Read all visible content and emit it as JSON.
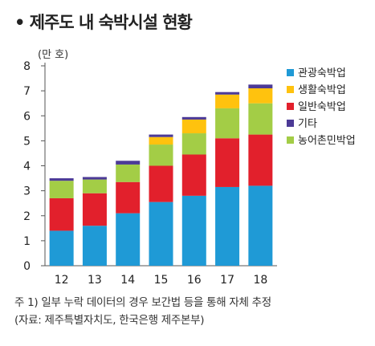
{
  "title": "• 제주도 내 숙박시설 현황",
  "chart_data": {
    "type": "bar",
    "stacked": true,
    "unit_label": "(만 호)",
    "categories": [
      "12",
      "13",
      "14",
      "15",
      "16",
      "17",
      "18"
    ],
    "ylim": [
      0,
      8
    ],
    "yticks": [
      "0",
      "1",
      "2",
      "3",
      "4",
      "5",
      "6",
      "7",
      "8"
    ],
    "grid": false,
    "legend_position": "right",
    "series": [
      {
        "name": "관광숙박업",
        "color": "#1f9ad6",
        "values": [
          1.4,
          1.6,
          2.1,
          2.55,
          2.8,
          3.15,
          3.2
        ]
      },
      {
        "name": "생활숙박업",
        "color": "#ffc20e",
        "values": [
          0,
          0,
          0,
          0.3,
          0.55,
          0.55,
          0.6
        ]
      },
      {
        "name": "일반숙박업",
        "color": "#e2202c",
        "values": [
          1.3,
          1.3,
          1.25,
          1.45,
          1.65,
          1.95,
          2.05
        ]
      },
      {
        "name": "기타",
        "color": "#4c3a96",
        "values": [
          0.1,
          0.1,
          0.15,
          0.1,
          0.1,
          0.1,
          0.15
        ]
      },
      {
        "name": "농어촌민박업",
        "color": "#a3cd46",
        "values": [
          0.7,
          0.55,
          0.7,
          0.85,
          0.85,
          1.2,
          1.25
        ]
      }
    ],
    "stack_order": [
      "관광숙박업",
      "일반숙박업",
      "농어촌민박업",
      "생활숙박업",
      "기타"
    ]
  },
  "notes": {
    "line1": "주 1) 일부 누락 데이터의 경우 보간법 등을 통해 자체 추정",
    "line2": "(자료: 제주특별자치도, 한국은행 제주본부)"
  }
}
